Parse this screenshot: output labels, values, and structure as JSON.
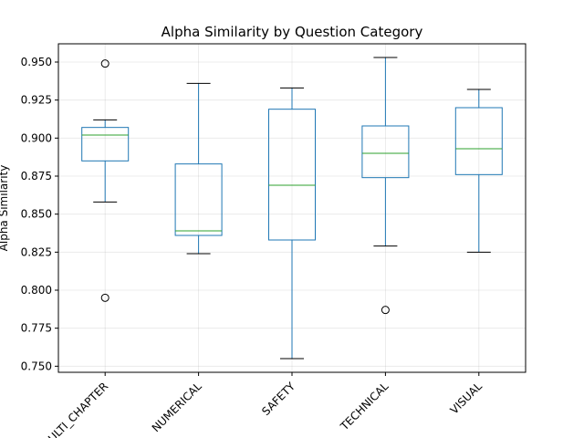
{
  "chart_data": {
    "type": "box",
    "title": "Alpha Similarity by Question Category",
    "xlabel": "",
    "ylabel": "Alpha Similarity",
    "ylim": [
      0.746,
      0.962
    ],
    "yticks": [
      0.75,
      0.775,
      0.8,
      0.825,
      0.85,
      0.875,
      0.9,
      0.925,
      0.95
    ],
    "ytick_labels": [
      "0.750",
      "0.775",
      "0.800",
      "0.825",
      "0.850",
      "0.875",
      "0.900",
      "0.925",
      "0.950"
    ],
    "grid": true,
    "categories": [
      "MULTI_CHAPTER",
      "NUMERICAL",
      "SAFETY",
      "TECHNICAL",
      "VISUAL"
    ],
    "boxes": [
      {
        "whislo": 0.858,
        "q1": 0.885,
        "med": 0.902,
        "q3": 0.907,
        "whishi": 0.912,
        "fliers": [
          0.949,
          0.795
        ]
      },
      {
        "whislo": 0.824,
        "q1": 0.836,
        "med": 0.839,
        "q3": 0.883,
        "whishi": 0.936,
        "fliers": []
      },
      {
        "whislo": 0.755,
        "q1": 0.833,
        "med": 0.869,
        "q3": 0.919,
        "whishi": 0.933,
        "fliers": []
      },
      {
        "whislo": 0.829,
        "q1": 0.874,
        "med": 0.89,
        "q3": 0.908,
        "whishi": 0.953,
        "fliers": [
          0.787
        ]
      },
      {
        "whislo": 0.825,
        "q1": 0.876,
        "med": 0.893,
        "q3": 0.92,
        "whishi": 0.932,
        "fliers": []
      }
    ],
    "colors": {
      "box": "#1f77b4",
      "median": "#2ca02c",
      "cap": "#000000"
    }
  }
}
